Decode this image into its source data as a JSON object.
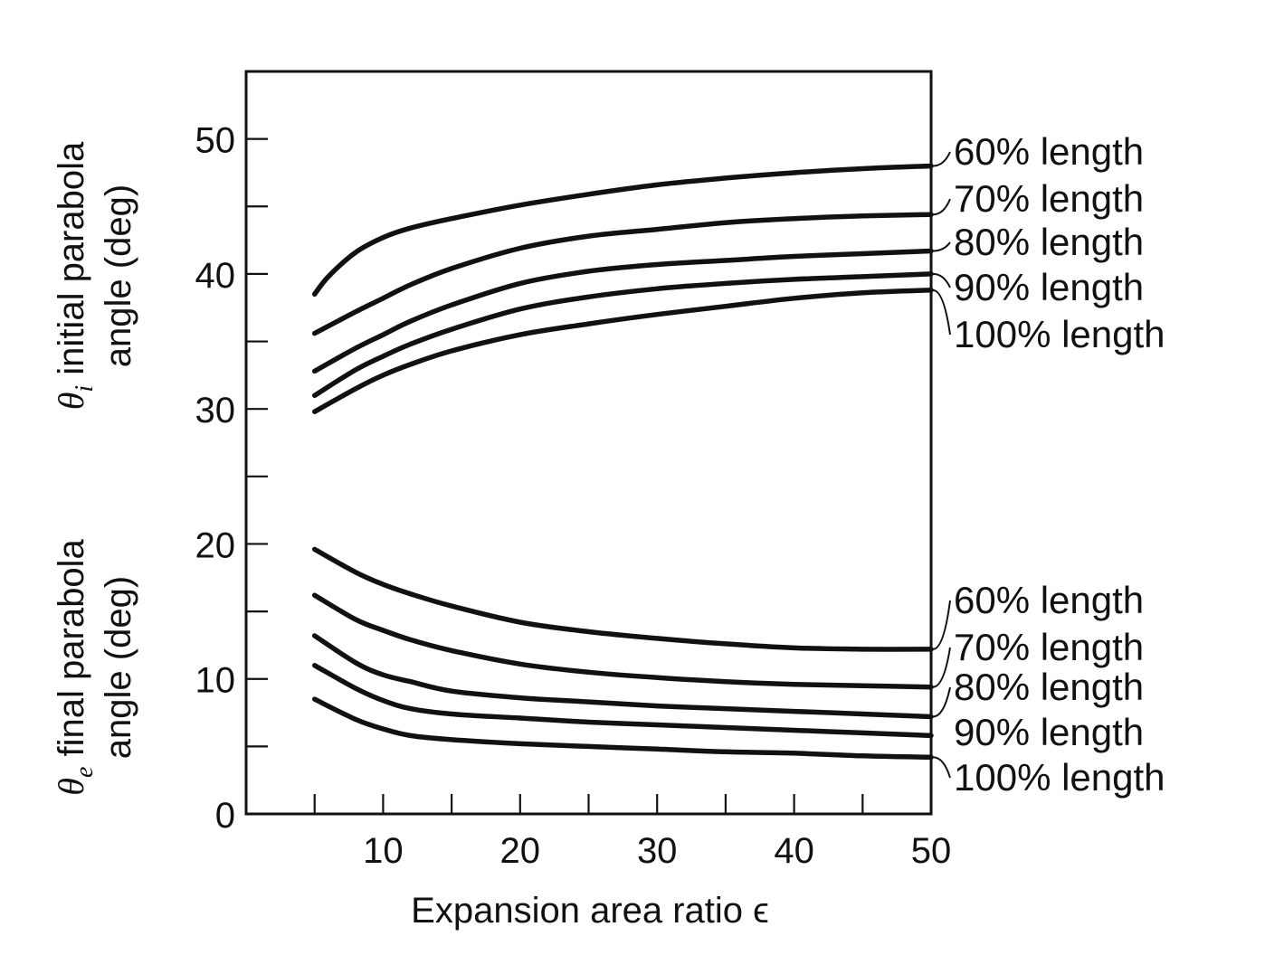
{
  "chart_data": {
    "type": "line",
    "xlabel": "Expansion area ratio ϵ",
    "ylabel_upper": {
      "symbol": "θ",
      "subscript": "i",
      "line1": " initial parabola",
      "line2": "angle (deg)"
    },
    "ylabel_lower": {
      "symbol": "θ",
      "subscript": "e",
      "line1": " final parabola",
      "line2": "angle (deg)"
    },
    "xlim": [
      0,
      50
    ],
    "ylim": [
      0,
      55
    ],
    "x_ticks_labeled": [
      10,
      20,
      30,
      40,
      50
    ],
    "x_ticks_minor": [
      5,
      15,
      25,
      35,
      45
    ],
    "y_ticks_labeled": [
      0,
      10,
      20,
      30,
      40,
      50
    ],
    "y_ticks_minor": [
      5,
      15,
      25,
      35,
      45
    ],
    "grid": false,
    "series": [
      {
        "name": "60% length",
        "group": "initial",
        "x": [
          5,
          6,
          8,
          10,
          12,
          15,
          20,
          25,
          30,
          35,
          40,
          45,
          50
        ],
        "y": [
          38.5,
          39.8,
          41.6,
          42.7,
          43.4,
          44.1,
          45.1,
          45.9,
          46.6,
          47.1,
          47.5,
          47.8,
          48.0
        ]
      },
      {
        "name": "70% length",
        "group": "initial",
        "x": [
          5,
          8,
          10,
          12,
          15,
          20,
          25,
          30,
          35,
          40,
          45,
          50
        ],
        "y": [
          35.6,
          37.2,
          38.2,
          39.2,
          40.4,
          41.9,
          42.8,
          43.3,
          43.8,
          44.1,
          44.3,
          44.4
        ]
      },
      {
        "name": "80% length",
        "group": "initial",
        "x": [
          5,
          8,
          10,
          12,
          15,
          20,
          25,
          30,
          35,
          40,
          45,
          50
        ],
        "y": [
          32.8,
          34.5,
          35.5,
          36.5,
          37.7,
          39.3,
          40.2,
          40.7,
          41.0,
          41.3,
          41.5,
          41.7
        ]
      },
      {
        "name": "90% length",
        "group": "initial",
        "x": [
          5,
          8,
          10,
          12,
          15,
          20,
          25,
          30,
          35,
          40,
          45,
          50
        ],
        "y": [
          31.0,
          32.9,
          33.9,
          34.8,
          35.9,
          37.4,
          38.3,
          38.9,
          39.3,
          39.6,
          39.8,
          40.0
        ]
      },
      {
        "name": "100% length",
        "group": "initial",
        "x": [
          5,
          8,
          10,
          12,
          15,
          20,
          25,
          30,
          35,
          40,
          45,
          50
        ],
        "y": [
          29.8,
          31.5,
          32.5,
          33.3,
          34.3,
          35.5,
          36.3,
          37.0,
          37.6,
          38.2,
          38.6,
          38.8
        ]
      },
      {
        "name": "60% length",
        "group": "final",
        "x": [
          5,
          8,
          10,
          12,
          15,
          20,
          25,
          30,
          35,
          40,
          45,
          50
        ],
        "y": [
          19.6,
          17.9,
          17.0,
          16.3,
          15.4,
          14.2,
          13.5,
          13.0,
          12.6,
          12.3,
          12.2,
          12.2
        ]
      },
      {
        "name": "70% length",
        "group": "final",
        "x": [
          5,
          8,
          10,
          12,
          15,
          20,
          25,
          30,
          35,
          40,
          45,
          50
        ],
        "y": [
          16.2,
          14.4,
          13.6,
          12.9,
          12.1,
          11.1,
          10.5,
          10.1,
          9.8,
          9.6,
          9.5,
          9.4
        ]
      },
      {
        "name": "80% length",
        "group": "final",
        "x": [
          5,
          8,
          10,
          12,
          15,
          20,
          25,
          30,
          35,
          40,
          45,
          50
        ],
        "y": [
          13.2,
          11.2,
          10.3,
          9.8,
          9.1,
          8.6,
          8.3,
          8.0,
          7.8,
          7.6,
          7.4,
          7.2
        ]
      },
      {
        "name": "90% length",
        "group": "final",
        "x": [
          5,
          8,
          10,
          12,
          15,
          20,
          25,
          30,
          35,
          40,
          45,
          50
        ],
        "y": [
          11.0,
          9.3,
          8.4,
          7.8,
          7.4,
          7.1,
          6.8,
          6.6,
          6.4,
          6.2,
          6.0,
          5.8
        ]
      },
      {
        "name": "100% length",
        "group": "final",
        "x": [
          5,
          8,
          10,
          12,
          15,
          20,
          25,
          30,
          35,
          40,
          45,
          50
        ],
        "y": [
          8.5,
          7.0,
          6.3,
          5.8,
          5.5,
          5.2,
          5.0,
          4.8,
          4.6,
          4.5,
          4.3,
          4.2
        ]
      }
    ]
  }
}
